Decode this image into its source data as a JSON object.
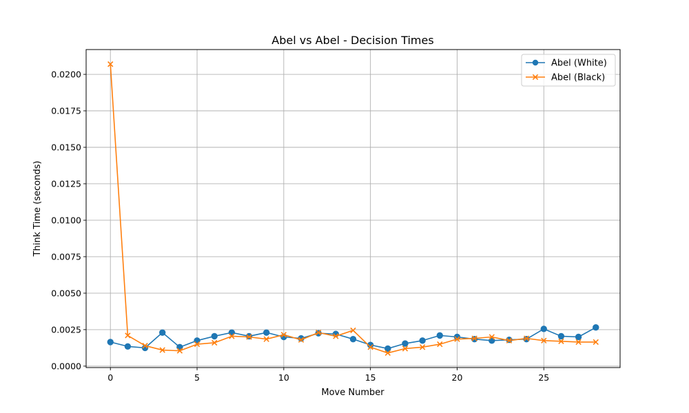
{
  "chart_data": {
    "type": "line",
    "title": "Abel vs Abel - Decision Times",
    "xlabel": "Move Number",
    "ylabel": "Think Time (seconds)",
    "xlim": [
      -1.4,
      29.4
    ],
    "ylim": [
      -0.0001,
      0.0217
    ],
    "x_ticks": [
      0,
      5,
      10,
      15,
      20,
      25
    ],
    "x_tick_labels": [
      "0",
      "5",
      "10",
      "15",
      "20",
      "25"
    ],
    "y_ticks": [
      0.0,
      0.0025,
      0.005,
      0.0075,
      0.01,
      0.0125,
      0.015,
      0.0175,
      0.02
    ],
    "y_tick_labels": [
      "0.0000",
      "0.0025",
      "0.0050",
      "0.0075",
      "0.0100",
      "0.0125",
      "0.0150",
      "0.0175",
      "0.0200"
    ],
    "grid": true,
    "legend_position": "top-right",
    "x": [
      0,
      1,
      2,
      3,
      4,
      5,
      6,
      7,
      8,
      9,
      10,
      11,
      12,
      13,
      14,
      15,
      16,
      17,
      18,
      19,
      20,
      21,
      22,
      23,
      24,
      25,
      26,
      27,
      28
    ],
    "series": [
      {
        "name": "Abel (White)",
        "color": "#1f77b4",
        "marker": "circle",
        "values": [
          0.00165,
          0.00135,
          0.00125,
          0.0023,
          0.0013,
          0.00175,
          0.00205,
          0.0023,
          0.00205,
          0.0023,
          0.002,
          0.0019,
          0.00225,
          0.0022,
          0.00185,
          0.00145,
          0.0012,
          0.00155,
          0.00175,
          0.0021,
          0.002,
          0.00185,
          0.00175,
          0.0018,
          0.00185,
          0.00255,
          0.00205,
          0.002,
          0.00265
        ]
      },
      {
        "name": "Abel (Black)",
        "color": "#ff7f0e",
        "marker": "x",
        "values": [
          0.0207,
          0.0021,
          0.0014,
          0.0011,
          0.00105,
          0.0015,
          0.0016,
          0.00205,
          0.002,
          0.00185,
          0.00215,
          0.0018,
          0.0023,
          0.00205,
          0.00245,
          0.0013,
          0.0009,
          0.0012,
          0.0013,
          0.0015,
          0.00185,
          0.0019,
          0.002,
          0.00175,
          0.0019,
          0.00175,
          0.0017,
          0.00165,
          0.00165
        ]
      }
    ]
  }
}
